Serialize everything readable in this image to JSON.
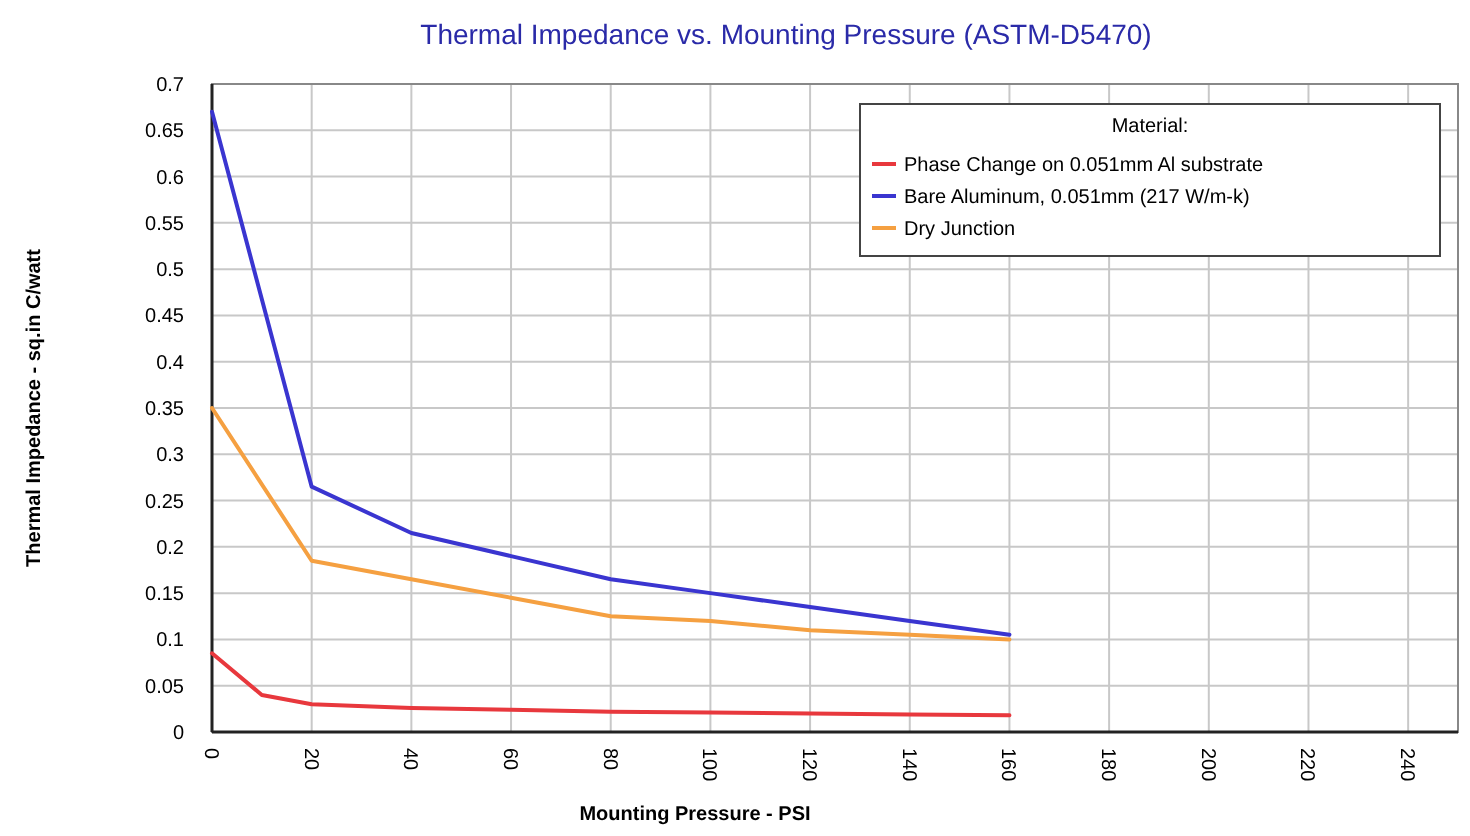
{
  "chart_data": {
    "type": "line",
    "title": "Thermal Impedance vs. Mounting Pressure (ASTM-D5470)",
    "xlabel": "Mounting Pressure - PSI",
    "ylabel": "Thermal Impedance - sq.in C/watt",
    "legend_title": "Material:",
    "legend": "top right",
    "grid": true,
    "marker": "none",
    "line_style": "solid",
    "xlim": [
      0,
      250
    ],
    "xticks": [
      0,
      20,
      40,
      60,
      80,
      100,
      120,
      140,
      160,
      180,
      200,
      220,
      240
    ],
    "ylim": [
      0,
      0.7
    ],
    "yticks": [
      0,
      0.05,
      0.1,
      0.15,
      0.2,
      0.25,
      0.3,
      0.35,
      0.4,
      0.45,
      0.5,
      0.55,
      0.6,
      0.65,
      0.7
    ],
    "series": [
      {
        "name": "Phase Change on 0.051mm Al substrate",
        "color": "#e8383d",
        "x": [
          0,
          10,
          20,
          40,
          60,
          80,
          100,
          120,
          140,
          160
        ],
        "values": [
          0.085,
          0.04,
          0.03,
          0.026,
          0.024,
          0.022,
          0.021,
          0.02,
          0.019,
          0.018
        ]
      },
      {
        "name": "Bare Aluminum, 0.051mm (217 W/m-k)",
        "color": "#3a35d0",
        "x": [
          0,
          20,
          40,
          60,
          80,
          100,
          120,
          140,
          160
        ],
        "values": [
          0.67,
          0.265,
          0.215,
          0.19,
          0.165,
          0.15,
          0.135,
          0.12,
          0.105
        ]
      },
      {
        "name": "Dry Junction",
        "color": "#f5a041",
        "x": [
          0,
          20,
          40,
          60,
          80,
          100,
          120,
          140,
          160
        ],
        "values": [
          0.35,
          0.185,
          0.165,
          0.145,
          0.125,
          0.12,
          0.11,
          0.105,
          0.1
        ]
      }
    ]
  }
}
